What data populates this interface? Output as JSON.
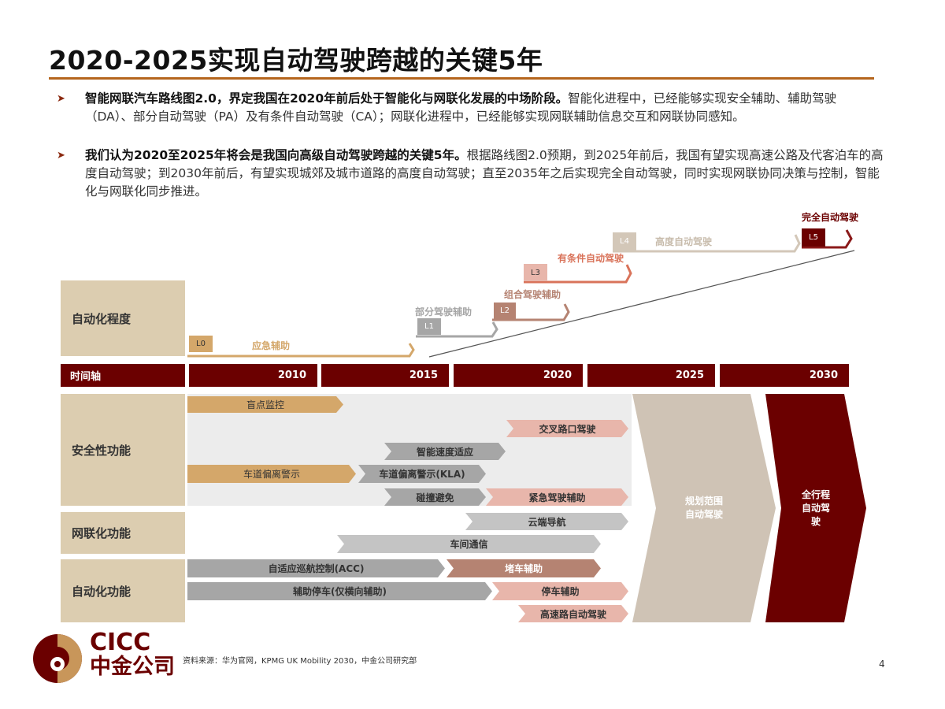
{
  "title": "2020-2025实现自动驾驶跨越的关键5年",
  "bullets": [
    {
      "bold": "智能网联汽车路线图2.0，界定我国在2020年前后处于智能化与网联化发展的中场阶段。",
      "text": "智能化进程中，已经能够实现安全辅助、辅助驾驶（DA）、部分自动驾驶（PA）及有条件自动驾驶（CA）；网联化进程中，已经能够实现网联辅助信息交互和网联协同感知。"
    },
    {
      "bold": "我们认为2020至2025年将会是我国向高级自动驾驶跨越的关键5年。",
      "text": "根据路线图2.0预期，到2025年前后，我国有望实现高速公路及代客泊车的高度自动驾驶；到2030年前后，有望实现城郊及城市道路的高度自动驾驶；直至2035年之后实现完全自动驾驶，同时实现网联协同决策与控制，智能化与网联化同步推进。"
    }
  ],
  "row_labels": {
    "automation_level": "自动化程度",
    "timeline": "时间轴",
    "safety": "安全性功能",
    "connectivity": "网联化功能",
    "automation_func": "自动化功能"
  },
  "timeline": [
    "2010",
    "2015",
    "2020",
    "2025",
    "2030"
  ],
  "levels": [
    {
      "code": "L0",
      "name": "应急辅助",
      "color": "#d4a76a"
    },
    {
      "code": "L1",
      "name": "部分驾驶辅助",
      "color": "#a6a6a6"
    },
    {
      "code": "L2",
      "name": "组合驾驶辅助",
      "color": "#b58372"
    },
    {
      "code": "L3",
      "name": "有条件自动驾驶",
      "color": "#e8b6ab"
    },
    {
      "code": "L4",
      "name": "高度自动驾驶",
      "color": "#d3c7b8"
    },
    {
      "code": "L5",
      "name": "完全自动驾驶",
      "color": "#6b0000"
    }
  ],
  "features": {
    "blind_spot": "盲点监控",
    "intersection": "交叉路口驾驶",
    "isa": "智能速度适应",
    "ldw": "车道偏离警示",
    "kla": "车道偏离警示(KLA)",
    "collision": "碰撞避免",
    "emergency": "紧急驾驶辅助",
    "cloud_nav": "云端导航",
    "v2v": "车间通信",
    "acc": "自适应巡航控制(ACC)",
    "traffic_jam": "堵车辅助",
    "park_assist_lat": "辅助停车(仅横向辅助)",
    "parking": "停车辅助",
    "highway": "高速路自动驾驶"
  },
  "big_arrows": {
    "planned": "规划范围\n自动驾驶",
    "full": "全行程\n自动驾\n驶"
  },
  "footer": {
    "logo_en": "CICC",
    "logo_cn": "中金公司",
    "source": "资料来源：华为官网，KPMG UK Mobility 2030，中金公司研究部",
    "page": "4"
  },
  "colors": {
    "brand": "#6b0000",
    "accent": "#b5651d",
    "tan": "#d4a76a"
  }
}
